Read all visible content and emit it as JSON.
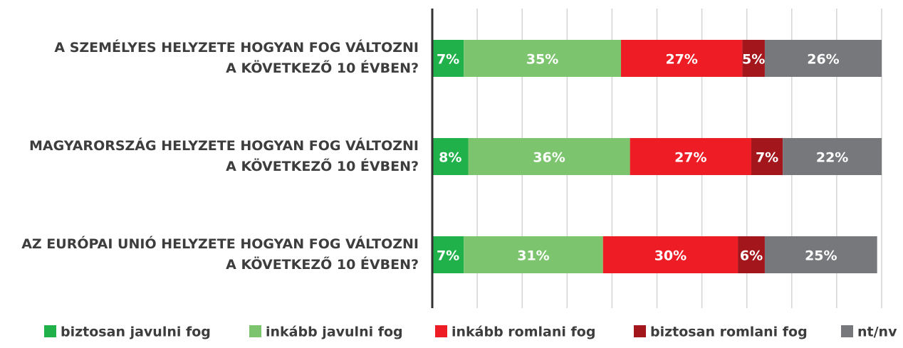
{
  "chart_data": {
    "type": "stacked_barh",
    "categories": [
      "A SZEMÉLYES HELYZETE HOGYAN FOG VÁLTOZNI\nA KÖVETKEZŐ 10 ÉVBEN?",
      "MAGYARORSZÁG HELYZETE HOGYAN FOG VÁLTOZNI\nA KÖVETKEZŐ 10 ÉVBEN?",
      "AZ EURÓPAI UNIÓ HELYZETE HOGYAN FOG VÁLTOZNI\nA KÖVETKEZŐ 10 ÉVBEN?"
    ],
    "series": [
      {
        "name": "biztosan javulni fog",
        "color": "#21b14b",
        "values": [
          7,
          8,
          7
        ],
        "value_labels": [
          "7%",
          "8%",
          "7%"
        ]
      },
      {
        "name": "inkább javulni fog",
        "color": "#7dc46e",
        "values": [
          35,
          36,
          31
        ],
        "value_labels": [
          "35%",
          "36%",
          "31%"
        ]
      },
      {
        "name": "inkább romlani fog",
        "color": "#ee1d25",
        "values": [
          27,
          27,
          30
        ],
        "value_labels": [
          "27%",
          "27%",
          "30%"
        ]
      },
      {
        "name": "biztosan romlani fog",
        "color": "#a3161c",
        "values": [
          5,
          7,
          6
        ],
        "value_labels": [
          "5%",
          "7%",
          "6%"
        ]
      },
      {
        "name": "nt/nv",
        "color": "#77787b",
        "values": [
          26,
          22,
          25
        ],
        "value_labels": [
          "26%",
          "22%",
          "25%"
        ]
      }
    ],
    "xlim": [
      0,
      100
    ],
    "xticks": [
      0,
      10,
      20,
      30,
      40,
      50,
      60,
      70,
      80,
      90,
      100
    ],
    "grid": true,
    "legend": "bottom"
  }
}
